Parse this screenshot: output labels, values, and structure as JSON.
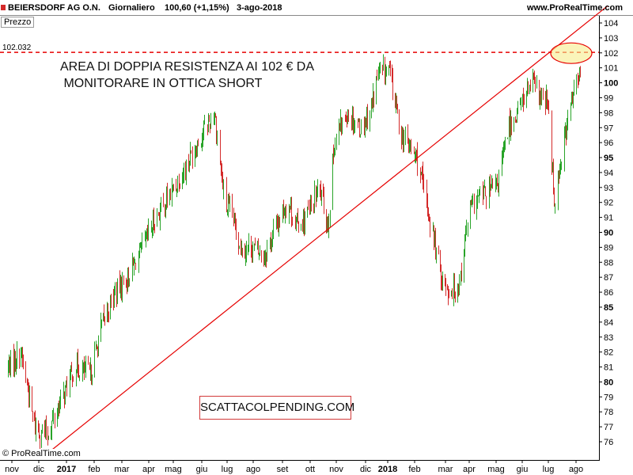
{
  "header": {
    "title": "BEIERSDORF AG O.N.",
    "frequency": "Giornaliero",
    "quote": "100,60 (+1,15%)",
    "date": "3-ago-2018",
    "site": "www.ProRealTime.com"
  },
  "panel_label": "Prezzo",
  "note_lines": [
    "AREA DI DOPPIA RESISTENZA AI 102 € DA",
    " MONITORARE IN OTTICA SHORT"
  ],
  "watermark": "SCATTACOLPENDING.COM",
  "copyright": "© ProRealTime.com",
  "colors": {
    "up": "#28a428",
    "down": "#d42a2a",
    "resistance": "#e60000",
    "trendline": "#e60000",
    "highlight": "#f7ec8c"
  },
  "chart_data": {
    "type": "line",
    "title": "BEIERSDORF AG O.N.",
    "ylim": [
      75,
      104
    ],
    "y_ticks": [
      76,
      77,
      78,
      79,
      80,
      81,
      82,
      83,
      84,
      85,
      86,
      87,
      88,
      89,
      90,
      91,
      92,
      93,
      94,
      95,
      96,
      97,
      98,
      99,
      100,
      101,
      102,
      103,
      104
    ],
    "y_bold_ticks": [
      80,
      85,
      90,
      95,
      100
    ],
    "x_tick_labels": [
      "nov",
      "dic",
      "2017",
      "feb",
      "mar",
      "apr",
      "mag",
      "giu",
      "lug",
      "ago",
      "set",
      "ott",
      "nov",
      "dic",
      "2018",
      "feb",
      "mar",
      "apr",
      "mag",
      "giu",
      "lug",
      "ago"
    ],
    "x_bold_labels": [
      "2017",
      "2018"
    ],
    "resistance_label": "102.032",
    "resistance_level": 102.032,
    "trendline": {
      "from": {
        "date": "2016-12-15",
        "price": 75.2
      },
      "to": {
        "date": "2018-08-10",
        "price": 104.0
      }
    },
    "series": [
      {
        "x": [
          "2016-11-01",
          "2016-11-15",
          "2016-12-01",
          "2016-12-15",
          "2017-01-15",
          "2017-02-01",
          "2017-02-15",
          "2017-03-01",
          "2017-03-15",
          "2017-04-01",
          "2017-04-15",
          "2017-05-01",
          "2017-05-15",
          "2017-06-01",
          "2017-06-10",
          "2017-06-20",
          "2017-07-01",
          "2017-07-10",
          "2017-07-20",
          "2017-08-01",
          "2017-08-15",
          "2017-09-01",
          "2017-09-10",
          "2017-09-20",
          "2017-10-01",
          "2017-10-15",
          "2017-10-25",
          "2017-11-01",
          "2017-11-15",
          "2017-12-01",
          "2017-12-10",
          "2017-12-20",
          "2018-01-01",
          "2018-01-15",
          "2018-02-01",
          "2018-02-15",
          "2018-03-01",
          "2018-03-10",
          "2018-03-20",
          "2018-04-01",
          "2018-04-15",
          "2018-05-01",
          "2018-05-15",
          "2018-06-01",
          "2018-06-10",
          "2018-06-20",
          "2018-06-28",
          "2018-07-05",
          "2018-07-15",
          "2018-07-25",
          "2018-08-03"
        ],
        "values": [
          81,
          82,
          77,
          76.5,
          81,
          80.5,
          84,
          86,
          87,
          89,
          91,
          92.5,
          94,
          96,
          97,
          98,
          92,
          91,
          89,
          89,
          88.5,
          91,
          92,
          90.5,
          91,
          93,
          90.5,
          96,
          98,
          97,
          98,
          100.5,
          101,
          96.5,
          95,
          91,
          87,
          86,
          86.5,
          91.5,
          92.5,
          93,
          97,
          99,
          100,
          99,
          98.5,
          92,
          96,
          99,
          100.5
        ]
      }
    ]
  }
}
